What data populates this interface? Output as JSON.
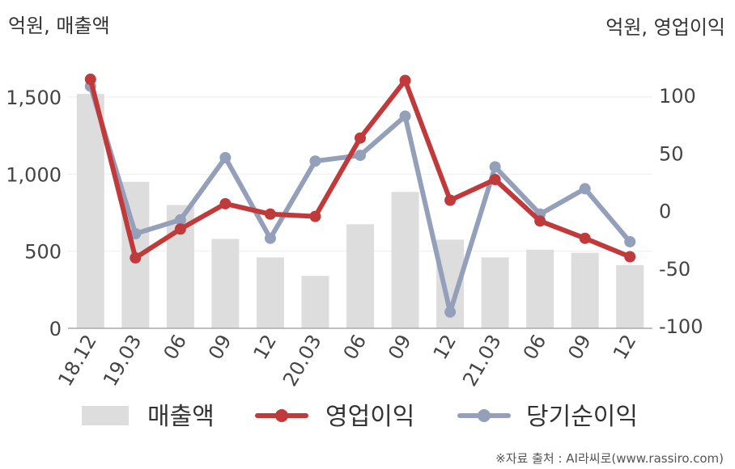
{
  "header": {
    "left_unit": "억원, 매출액",
    "right_unit": "억원, 영업이익"
  },
  "source": "※자료 출처 : AI라씨로(www.rassiro.com)",
  "chart_data": {
    "type": "bar+line",
    "categories": [
      "18.12",
      "19.03",
      "06",
      "09",
      "12",
      "20.03",
      "06",
      "09",
      "12",
      "21.03",
      "06",
      "09",
      "12"
    ],
    "left_axis": {
      "range": [
        0,
        1500
      ],
      "ticks": [
        0,
        500,
        1000,
        1500
      ],
      "tick_labels": [
        "0",
        "500",
        "1,000",
        "1,500"
      ]
    },
    "right_axis": {
      "range": [
        -100,
        100
      ],
      "ticks": [
        -100,
        -50,
        0,
        50,
        100
      ],
      "tick_labels": [
        "-100",
        "-50",
        "0",
        "50",
        "100"
      ]
    },
    "series": [
      {
        "name": "매출액",
        "type": "bar",
        "axis": "left",
        "color": "#dddddd",
        "values": [
          1520,
          950,
          800,
          580,
          460,
          340,
          675,
          885,
          575,
          460,
          510,
          490,
          410
        ]
      },
      {
        "name": "영업이익",
        "type": "line",
        "axis": "right",
        "color": "#c0393b",
        "values": [
          114,
          -41,
          -16,
          6,
          -3,
          -5,
          63,
          113,
          9,
          27,
          -9,
          -24,
          -40
        ]
      },
      {
        "name": "당기순이익",
        "type": "line",
        "axis": "right",
        "color": "#94a0ba",
        "values": [
          108,
          -20,
          -8,
          46,
          -24,
          43,
          48,
          82,
          -88,
          38,
          -3,
          19,
          -27
        ]
      }
    ],
    "grid": true,
    "legend": "bottom"
  }
}
